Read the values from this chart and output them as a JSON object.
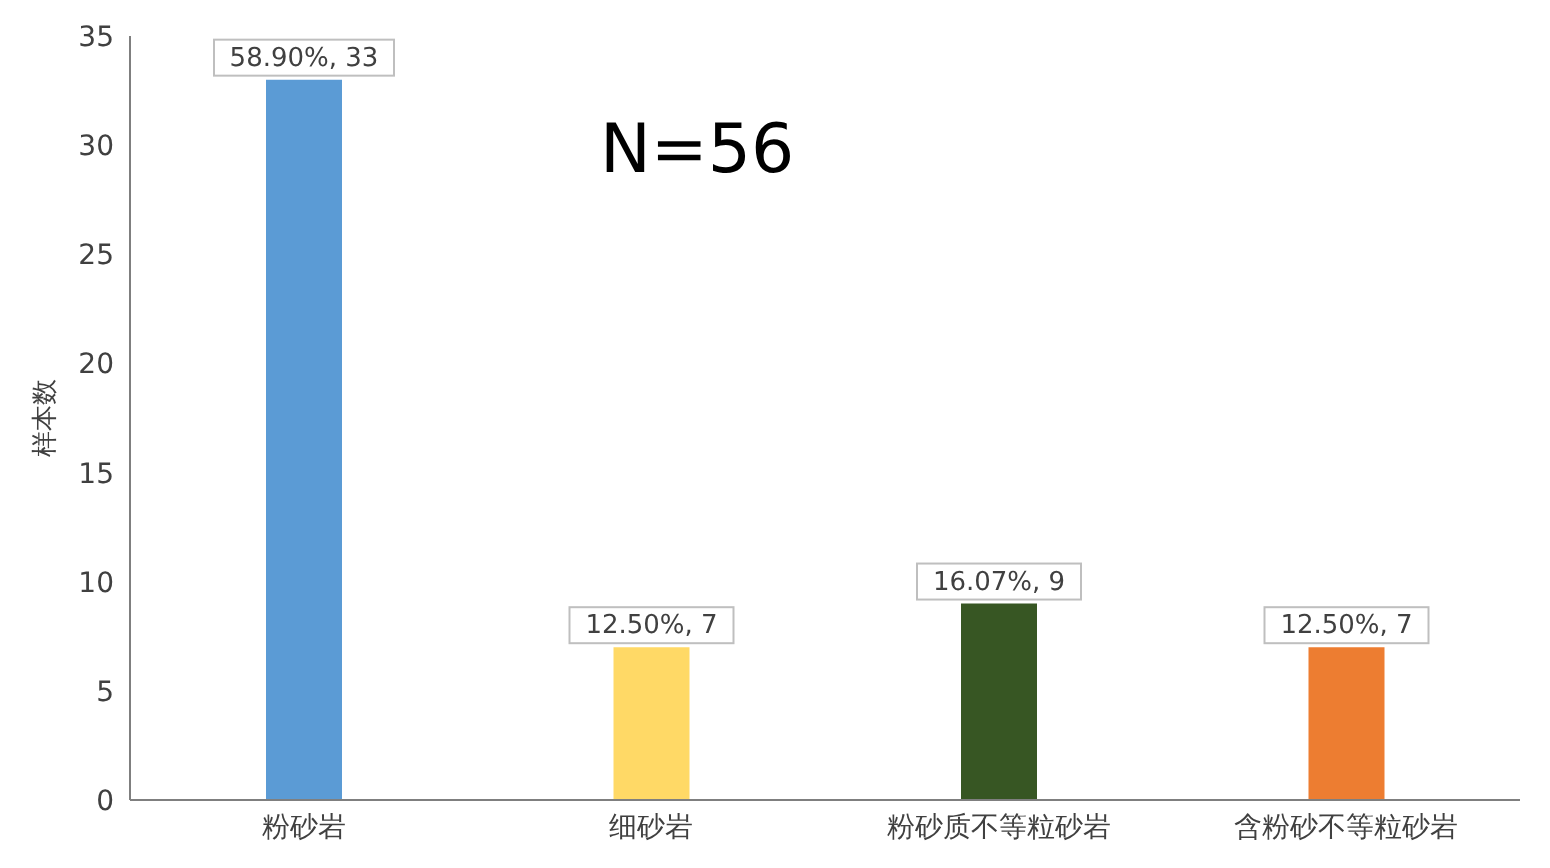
{
  "chart_data": {
    "type": "bar",
    "ylabel": "样本数",
    "categories": [
      "粉砂岩",
      "细砂岩",
      "粉砂质不等粒砂岩",
      "含粉砂不等粒砂岩"
    ],
    "values": [
      33,
      7,
      9,
      7
    ],
    "colors": [
      "#5b9bd5",
      "#ffd966",
      "#375623",
      "#ed7d31"
    ],
    "value_labels": [
      "58.90%, 33",
      "12.50%, 7",
      "16.07%, 9",
      "12.50%, 7"
    ],
    "ylim": [
      0,
      35
    ],
    "yticks": [
      0,
      5,
      10,
      15,
      20,
      25,
      30,
      35
    ],
    "grid": false,
    "legend": false,
    "annotations": [
      "N=56"
    ]
  }
}
